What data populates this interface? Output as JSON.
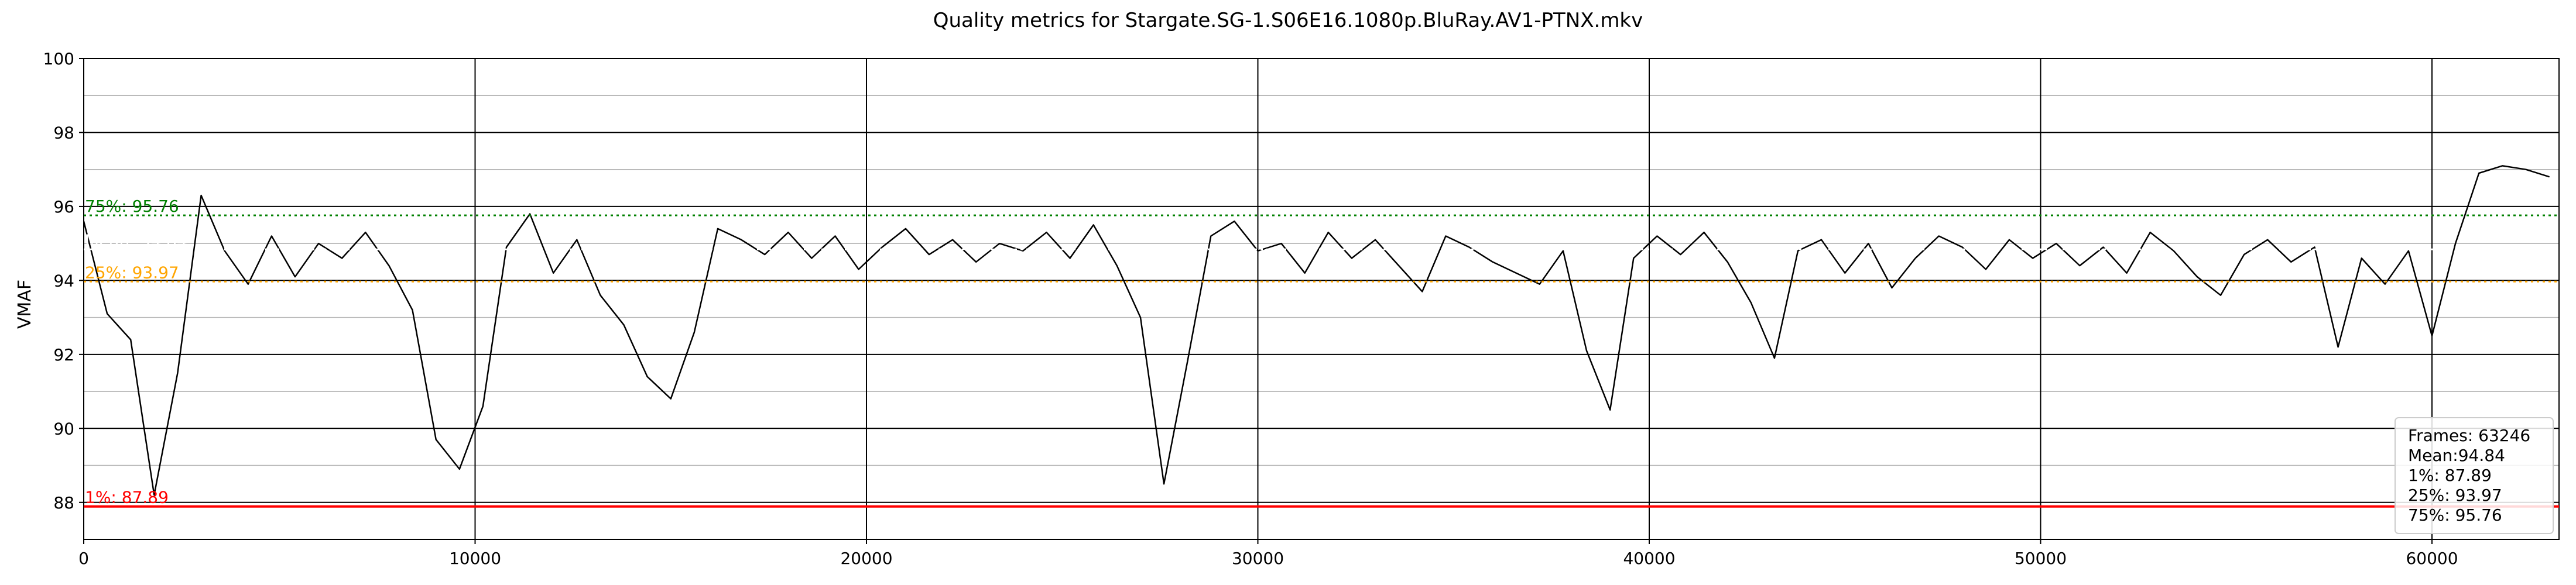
{
  "chart_data": {
    "type": "line",
    "title": "Quality metrics for Stargate.SG-1.S06E16.1080p.BluRay.AV1-PTNX.mkv",
    "xlabel": "",
    "ylabel": "VMAF",
    "xlim": [
      0,
      63246
    ],
    "ylim": [
      87,
      100
    ],
    "x_ticks": [
      0,
      10000,
      20000,
      30000,
      40000,
      50000,
      60000
    ],
    "y_ticks": [
      88,
      90,
      92,
      94,
      96,
      98,
      100
    ],
    "grid": true,
    "series": [
      {
        "color": "#000000",
        "frames": 63246,
        "x": [
          0,
          600,
          1200,
          1800,
          2400,
          3000,
          3600,
          4200,
          4800,
          5400,
          6000,
          6600,
          7200,
          7800,
          8400,
          9000,
          9600,
          10200,
          10800,
          11400,
          12000,
          12600,
          13200,
          13800,
          14400,
          15000,
          15600,
          16200,
          16800,
          17400,
          18000,
          18600,
          19200,
          19800,
          20400,
          21000,
          21600,
          22200,
          22800,
          23400,
          24000,
          24600,
          25200,
          25800,
          26400,
          27000,
          27600,
          28200,
          28800,
          29400,
          30000,
          30600,
          31200,
          31800,
          32400,
          33000,
          33600,
          34200,
          34800,
          35400,
          36000,
          36600,
          37200,
          37800,
          38400,
          39000,
          39600,
          40200,
          40800,
          41400,
          42000,
          42600,
          43200,
          43800,
          44400,
          45000,
          45600,
          46200,
          46800,
          47400,
          48000,
          48600,
          49200,
          49800,
          50400,
          51000,
          51600,
          52200,
          52800,
          53400,
          54000,
          54600,
          55200,
          55800,
          56400,
          57000,
          57600,
          58200,
          58800,
          59400,
          60000,
          60600,
          61200,
          61800,
          62400,
          63000
        ],
        "y": [
          95.6,
          93.1,
          92.4,
          88.2,
          91.5,
          96.3,
          94.8,
          93.9,
          95.2,
          94.1,
          95.0,
          94.6,
          95.3,
          94.4,
          93.2,
          89.7,
          88.9,
          90.6,
          94.9,
          95.8,
          94.2,
          95.1,
          93.6,
          92.8,
          91.4,
          90.8,
          92.6,
          95.4,
          95.1,
          94.7,
          95.3,
          94.6,
          95.2,
          94.3,
          94.9,
          95.4,
          94.7,
          95.1,
          94.5,
          95.0,
          94.8,
          95.3,
          94.6,
          95.5,
          94.4,
          93.0,
          88.5,
          91.8,
          95.2,
          95.6,
          94.8,
          95.0,
          94.2,
          95.3,
          94.6,
          95.1,
          94.4,
          93.7,
          95.2,
          94.9,
          94.5,
          94.2,
          93.9,
          94.8,
          92.1,
          90.5,
          94.6,
          95.2,
          94.7,
          95.3,
          94.5,
          93.4,
          91.9,
          94.8,
          95.1,
          94.2,
          95.0,
          93.8,
          94.6,
          95.2,
          94.9,
          94.3,
          95.1,
          94.6,
          95.0,
          94.4,
          94.9,
          94.2,
          95.3,
          94.8,
          94.1,
          93.6,
          94.7,
          95.1,
          94.5,
          94.9,
          92.2,
          94.6,
          93.9,
          94.8,
          92.5,
          95.0,
          96.9,
          97.1,
          97.0,
          96.8
        ]
      }
    ],
    "reference_lines": [
      {
        "label": "1%: 87.89",
        "value": 87.89,
        "color": "#ff0000",
        "style": "solid"
      },
      {
        "label": "25%: 93.97",
        "value": 93.97,
        "color": "#ffa500",
        "style": "dotted"
      },
      {
        "label": "Mean: 94.84",
        "value": 94.84,
        "color": "#ffffff",
        "style": "dotted"
      },
      {
        "label": "75%: 95.76",
        "value": 95.76,
        "color": "#008000",
        "style": "dotted"
      }
    ],
    "legend": {
      "placement": "bottom-right",
      "lines": [
        "Frames: 63246",
        "Mean:94.84",
        "1%: 87.89",
        "25%: 93.97",
        "75%: 95.76"
      ]
    }
  }
}
